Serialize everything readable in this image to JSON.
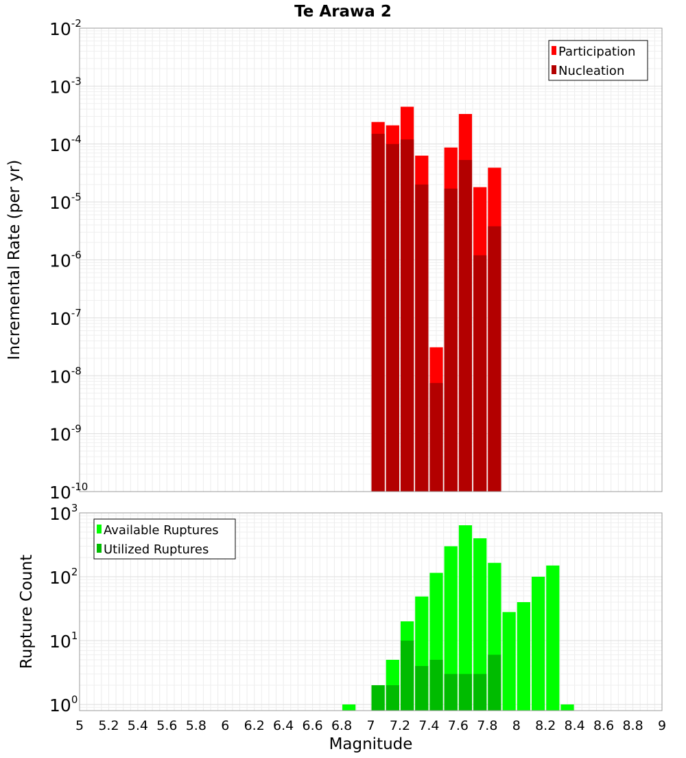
{
  "title": "Te Arawa 2",
  "x_axis": {
    "label": "Magnitude",
    "range": [
      5,
      9
    ],
    "ticks": [
      "5",
      "5.2",
      "5.4",
      "5.6",
      "5.8",
      "6",
      "6.2",
      "6.4",
      "6.6",
      "6.8",
      "7",
      "7.2",
      "7.4",
      "7.6",
      "7.8",
      "8",
      "8.2",
      "8.4",
      "8.6",
      "8.8",
      "9"
    ]
  },
  "chart_data": [
    {
      "type": "bar",
      "scale": "log",
      "ylabel": "Incremental Rate (per yr)",
      "ylim": [
        1e-10,
        0.01
      ],
      "y_ticks": [
        {
          "base": "10",
          "exp": "-10",
          "value": 1e-10
        },
        {
          "base": "10",
          "exp": "-9",
          "value": 1e-09
        },
        {
          "base": "10",
          "exp": "-8",
          "value": 1e-08
        },
        {
          "base": "10",
          "exp": "-7",
          "value": 1e-07
        },
        {
          "base": "10",
          "exp": "-6",
          "value": 1e-06
        },
        {
          "base": "10",
          "exp": "-5",
          "value": 1e-05
        },
        {
          "base": "10",
          "exp": "-4",
          "value": 0.0001
        },
        {
          "base": "10",
          "exp": "-3",
          "value": 0.001
        },
        {
          "base": "10",
          "exp": "-2",
          "value": 0.01
        }
      ],
      "bin_width": 0.1,
      "x": [
        7.05,
        7.15,
        7.25,
        7.35,
        7.45,
        7.55,
        7.65,
        7.75,
        7.85
      ],
      "grid": true,
      "legend_position": "top-right",
      "series": [
        {
          "name": "Participation",
          "color": "#ff0000",
          "values": [
            0.00024,
            0.00021,
            0.00044,
            6.3e-05,
            3.1e-08,
            8.7e-05,
            0.00033,
            1.8e-05,
            3.9e-05
          ]
        },
        {
          "name": "Nucleation",
          "color": "#b30000",
          "values": [
            0.00015,
            0.0001,
            0.00012,
            2e-05,
            7.5e-09,
            1.7e-05,
            5.3e-05,
            1.2e-06,
            3.8e-06
          ]
        }
      ]
    },
    {
      "type": "bar",
      "scale": "log",
      "ylabel": "Rupture Count",
      "ylim": [
        0.8,
        1000
      ],
      "y_ticks": [
        {
          "base": "10",
          "exp": "0",
          "value": 1
        },
        {
          "base": "10",
          "exp": "1",
          "value": 10
        },
        {
          "base": "10",
          "exp": "2",
          "value": 100
        },
        {
          "base": "10",
          "exp": "3",
          "value": 1000
        }
      ],
      "bin_width": 0.1,
      "x": [
        6.85,
        7.05,
        7.15,
        7.25,
        7.35,
        7.45,
        7.55,
        7.65,
        7.75,
        7.85,
        7.95,
        8.05,
        8.15,
        8.25,
        8.35
      ],
      "grid": true,
      "legend_position": "top-left",
      "series": [
        {
          "name": "Available Ruptures",
          "color": "#00ff00",
          "values": [
            1,
            2,
            5,
            20,
            49,
            115,
            300,
            640,
            400,
            165,
            28,
            40,
            100,
            150,
            1
          ]
        },
        {
          "name": "Utilized Ruptures",
          "color": "#00bb00",
          "values": [
            0,
            2,
            2,
            10,
            4,
            5,
            3,
            3,
            3,
            6,
            0,
            0,
            0,
            0,
            0
          ]
        }
      ]
    }
  ]
}
